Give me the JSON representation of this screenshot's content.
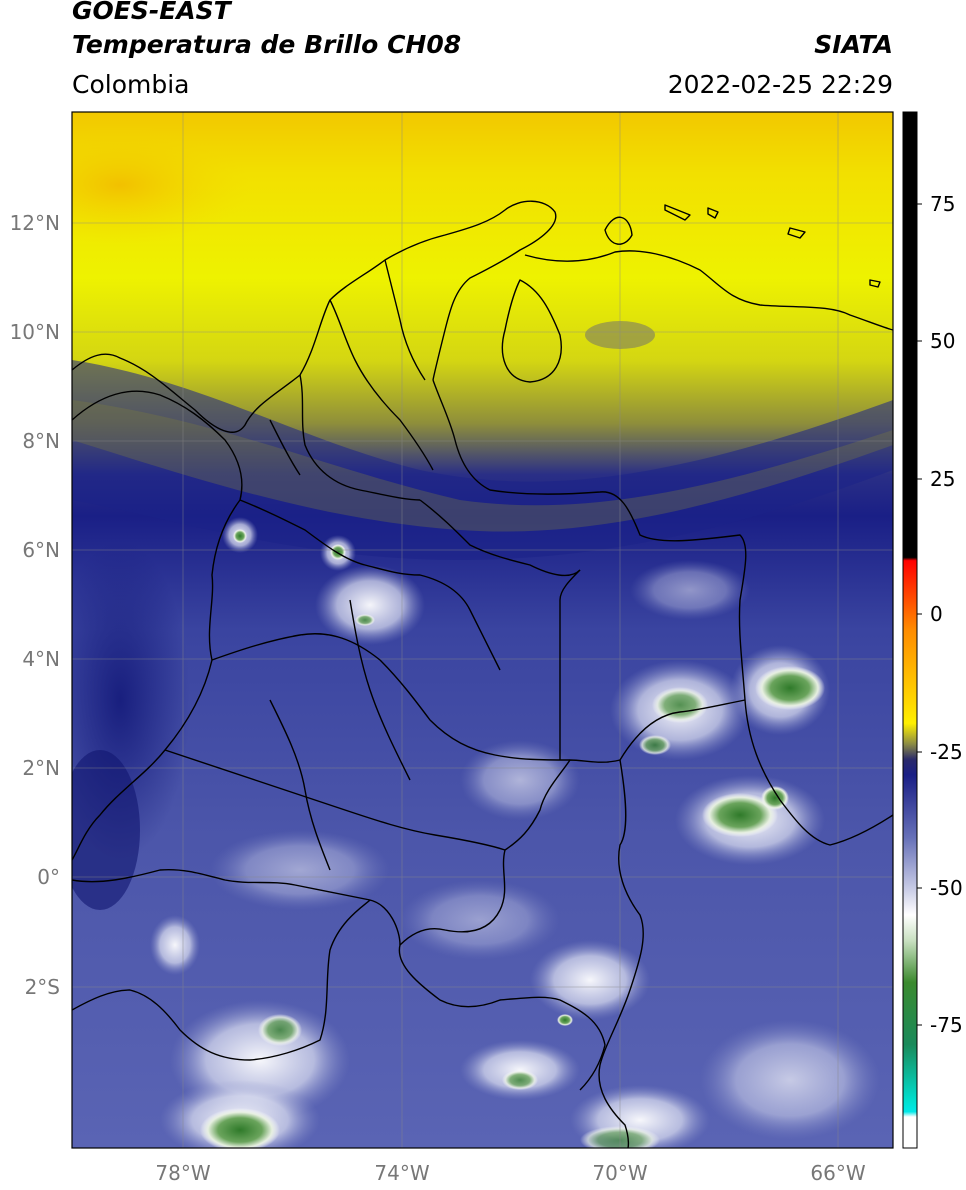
{
  "header": {
    "satellite": "GOES-EAST",
    "product": "Temperatura de Brillo CH08",
    "region": "Colombia",
    "org": "SIATA",
    "datetime": "2022-02-25 22:29"
  },
  "axes": {
    "lat_ticks": [
      "12°N",
      "10°N",
      "8°N",
      "6°N",
      "4°N",
      "2°N",
      "0°",
      "2°S"
    ],
    "lon_ticks": [
      "78°W",
      "74°W",
      "70°W",
      "66°W"
    ]
  },
  "colorbar": {
    "labels": [
      "75",
      "50",
      "25",
      "0",
      "-25",
      "-50",
      "-75"
    ]
  },
  "colors": {
    "yellow": "#f2f200",
    "deep_blue": "#1a1f86",
    "mid_blue": "#4a54a8",
    "light_blue": "#8c93c9",
    "white_cloud": "#eef0f8",
    "green": "#3b8a2e",
    "black": "#000000",
    "red": "#e82000",
    "cyan": "#00d8d8"
  }
}
